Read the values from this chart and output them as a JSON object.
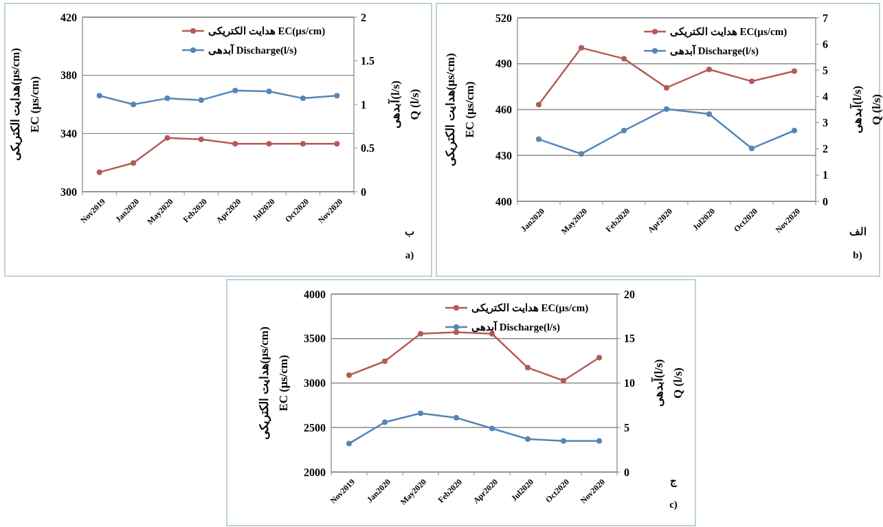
{
  "chart_data": [
    {
      "type": "line",
      "categories": [
        "Nov2019",
        "Jan2020",
        "May2020",
        "Feb2020",
        "Apr2020",
        "Jul2020",
        "Oct2020",
        "Nov2020"
      ],
      "series": [
        {
          "name": "هدایت الکتریکی EC(µs/cm)",
          "color": "#b55a55",
          "values": [
            313.4,
            319.7,
            337,
            336,
            333,
            333,
            333,
            333
          ]
        },
        {
          "name": "آبدهی Discharge(l/s)",
          "color": "#5585b5",
          "axis": "y2",
          "values": [
            1.1,
            1.0,
            1.07,
            1.05,
            1.16,
            1.15,
            1.07,
            1.1
          ]
        }
      ],
      "ylabel": "هدایت الکتریکی(µs/cm)\nEC (µs/cm)",
      "y2label": "آبدهی(l/s)\nQ (l/s)",
      "ylim": [
        300,
        420
      ],
      "yticks": [
        300,
        340,
        380,
        420
      ],
      "y2lim": [
        0,
        2
      ],
      "y2ticks": [
        0,
        0.5,
        1,
        1.5,
        2
      ],
      "grid": "y",
      "legend": "top right",
      "marker": "circle",
      "line_style": "solid",
      "annotations": [
        "ب",
        "a)"
      ]
    },
    {
      "type": "line",
      "categories": [
        "Jan2020",
        "May2020",
        "Feb2020",
        "Apr2020",
        "Jul2020",
        "Oct2020",
        "Nov2020"
      ],
      "series": [
        {
          "name": "هدایت الکتریکی EC(µs/cm)",
          "color": "#b55a55",
          "values": [
            463.3,
            500.4,
            493.3,
            474.3,
            486.3,
            478.5,
            485.2
          ]
        },
        {
          "name": "آبدهی Discharge(l/s)",
          "color": "#5585b5",
          "axis": "y2",
          "values": [
            2.37,
            1.81,
            2.7,
            3.52,
            3.33,
            2.02,
            2.7
          ]
        }
      ],
      "ylabel": "هدایت الکتریکی(µs/cm)\nEC (µs/cm)",
      "y2label": "آبدهی(l/s)\nQ (l/s)",
      "ylim": [
        400,
        520
      ],
      "yticks": [
        400,
        430,
        460,
        490,
        520
      ],
      "y2lim": [
        0,
        7
      ],
      "y2ticks": [
        0,
        1,
        2,
        3,
        4,
        5,
        6,
        7
      ],
      "grid": "y",
      "legend": "top right",
      "marker": "circle",
      "line_style": "solid",
      "annotations": [
        "الف",
        "b)"
      ]
    },
    {
      "type": "line",
      "categories": [
        "Nov2019",
        "Jan2020",
        "May2020",
        "Feb2020",
        "Apr2020",
        "Jul2020",
        "Oct2020",
        "Nov2020"
      ],
      "series": [
        {
          "name": "هدایت الکتریکی EC(µs/cm)",
          "color": "#b55a55",
          "values": [
            3088,
            3245,
            3554,
            3571,
            3554,
            3173,
            3027,
            3286
          ]
        },
        {
          "name": "آبدهی Discharge(l/s)",
          "color": "#5585b5",
          "axis": "y2",
          "values": [
            3.2,
            5.6,
            6.6,
            6.1,
            4.9,
            3.7,
            3.5,
            3.5
          ]
        }
      ],
      "ylabel": "هدایت الکتریکی(µs/cm)\nEC (µs/cm)",
      "y2label": "آبدهی(l/s)\nQ (l/s)",
      "ylim": [
        2000,
        4000
      ],
      "yticks": [
        2000,
        2500,
        3000,
        3500,
        4000
      ],
      "y2lim": [
        0,
        20
      ],
      "y2ticks": [
        0,
        5,
        10,
        15,
        20
      ],
      "grid": "y",
      "legend": "top right",
      "marker": "circle",
      "line_style": "solid",
      "annotations": [
        "ج",
        "c)"
      ]
    }
  ]
}
